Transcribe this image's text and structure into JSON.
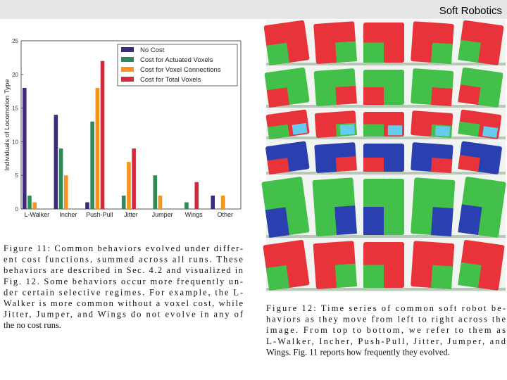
{
  "header": {
    "title": "Soft Robotics"
  },
  "chart_data": {
    "type": "bar",
    "ylabel": "Individuals of Locomotion Type",
    "categories": [
      "L-Walker",
      "Incher",
      "Push-Pull",
      "Jitter",
      "Jumper",
      "Wings",
      "Other"
    ],
    "series": [
      {
        "name": "No Cost",
        "color": "#3d2a7d",
        "values": [
          18,
          14,
          1,
          0,
          0,
          0,
          2
        ]
      },
      {
        "name": "Cost for Actuated Voxels",
        "color": "#2e8b57",
        "values": [
          2,
          9,
          13,
          2,
          5,
          1,
          0
        ]
      },
      {
        "name": "Cost for Voxel Connections",
        "color": "#f7941d",
        "values": [
          1,
          5,
          18,
          7,
          2,
          0,
          2
        ]
      },
      {
        "name": "Cost for Total Voxels",
        "color": "#d42a3c",
        "values": [
          0,
          0,
          22,
          9,
          0,
          4,
          0
        ]
      }
    ],
    "ylim": [
      0,
      25
    ],
    "yticks": [
      0,
      5,
      10,
      15,
      20,
      25
    ],
    "grid": false,
    "legend": "top-right"
  },
  "captions": {
    "figure11": [
      "Figure 11: Common behaviors evolved under differ-",
      "ent cost functions, summed across all runs. These",
      "behaviors are described in Sec. 4.2 and visualized in",
      "Fig. 12. Some behaviors occur more frequently un-",
      "der certain selective regimes. For example, the L-",
      "Walker is more common without a voxel cost, while",
      "Jitter, Jumper, and Wings do not evolve in any of",
      "the no cost runs."
    ],
    "figure12": [
      "Figure 12: Time series of common soft robot be-",
      "haviors as they move from left to right across the",
      "image. From top to bottom, we refer to them as",
      "L-Walker, Incher, Push-Pull, Jitter, Jumper, and",
      "Wings. Fig. 11 reports how frequently they evolved."
    ]
  }
}
